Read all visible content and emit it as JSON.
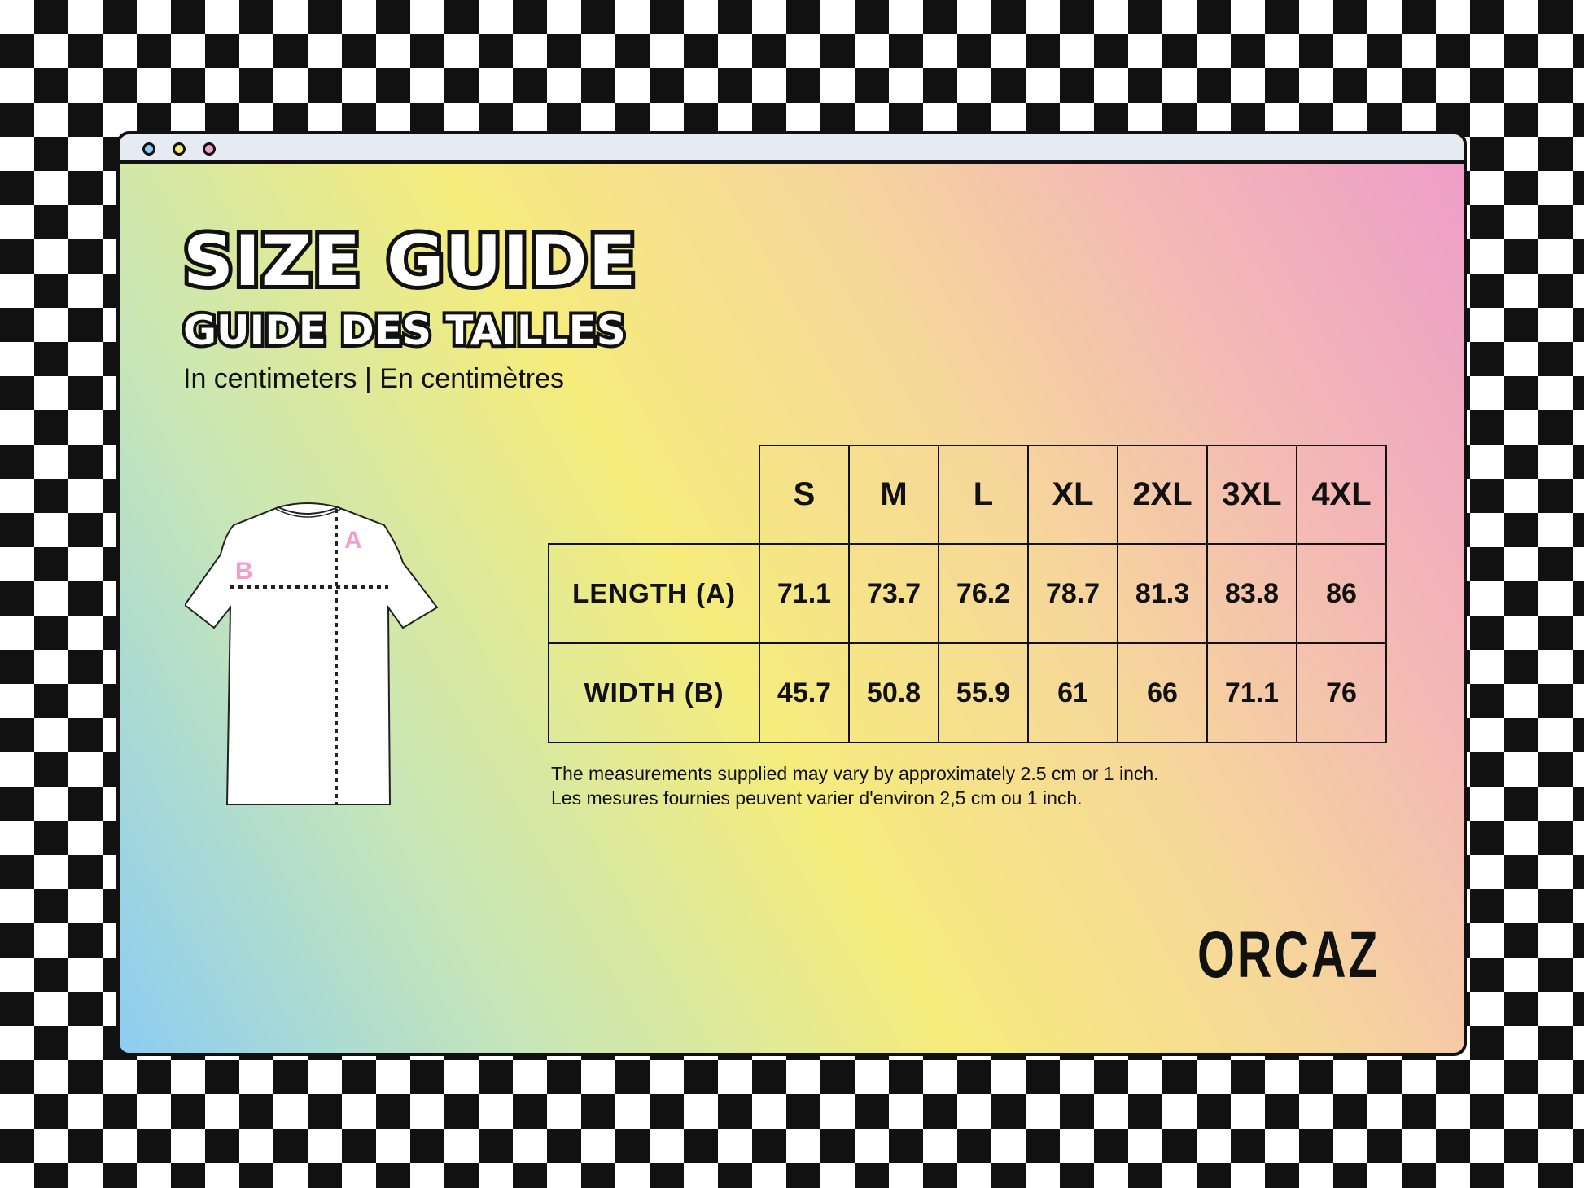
{
  "window": {
    "dots": [
      {
        "name": "blue",
        "color": "#8ccdf2"
      },
      {
        "name": "yellow",
        "color": "#f5ec7c"
      },
      {
        "name": "pink",
        "color": "#ee9ec8"
      }
    ]
  },
  "title": "SIZE GUIDE",
  "title_fr": "GUIDE DES TAILLES",
  "subtitle": "In centimeters | En centimètres",
  "diagram": {
    "label_a": "A",
    "label_b": "B",
    "label_color": "#f0a0c8"
  },
  "table": {
    "sizes": [
      "S",
      "M",
      "L",
      "XL",
      "2XL",
      "3XL",
      "4XL"
    ],
    "rows": [
      {
        "label": "LENGTH (A)",
        "values": [
          "71.1",
          "73.7",
          "76.2",
          "78.7",
          "81.3",
          "83.8",
          "86"
        ]
      },
      {
        "label": "WIDTH (B)",
        "values": [
          "45.7",
          "50.8",
          "55.9",
          "61",
          "66",
          "71.1",
          "76"
        ]
      }
    ]
  },
  "note": [
    "The measurements supplied may vary by approximately 2.5 cm or 1 inch.",
    "Les mesures fournies peuvent varier d'environ 2,5 cm ou 1 inch."
  ],
  "brand": "ORCAZ"
}
